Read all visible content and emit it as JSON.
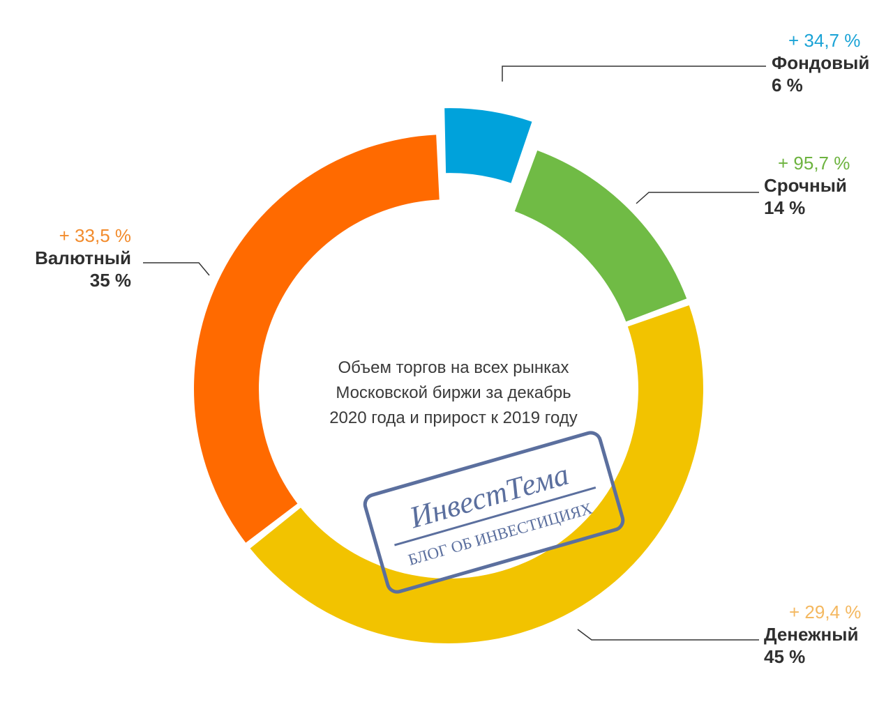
{
  "chart_data": {
    "type": "pie",
    "variant": "donut",
    "title": "Объем торгов на всех рынках Московской биржи за декабрь 2020 года и прирост к 2019 году",
    "title_lines": [
      "Объем торгов на всех рынках",
      "Московской биржи за декабрь",
      "2020 года и прирост к 2019 году"
    ],
    "slices": [
      {
        "label": "Фондовый",
        "value": 6,
        "share_text": "6 %",
        "growth_text": "+ 34,7 %",
        "color": "#00a2db",
        "exploded": true
      },
      {
        "label": "Срочный",
        "value": 14,
        "share_text": "14 %",
        "growth_text": "+ 95,7 %",
        "color": "#70bb45",
        "exploded": false
      },
      {
        "label": "Денежный",
        "value": 45,
        "share_text": "45 %",
        "growth_text": "+ 29,4 %",
        "color": "#f2c300",
        "exploded": false
      },
      {
        "label": "Валютный",
        "value": 35,
        "share_text": "35 %",
        "growth_text": "+ 33,5 %",
        "color": "#ff6a00",
        "exploded": false
      }
    ],
    "growth_label_colors": {
      "Фондовый": "#1aa3d6",
      "Срочный": "#6db33f",
      "Денежный": "#f4b860",
      "Валютный": "#f28b2c"
    },
    "legend": "none"
  },
  "watermark": {
    "title": "ИнвестТема",
    "subtitle": "БЛОГ ОБ ИНВЕСТИЦИЯХ",
    "color": "#5b6f9e"
  }
}
